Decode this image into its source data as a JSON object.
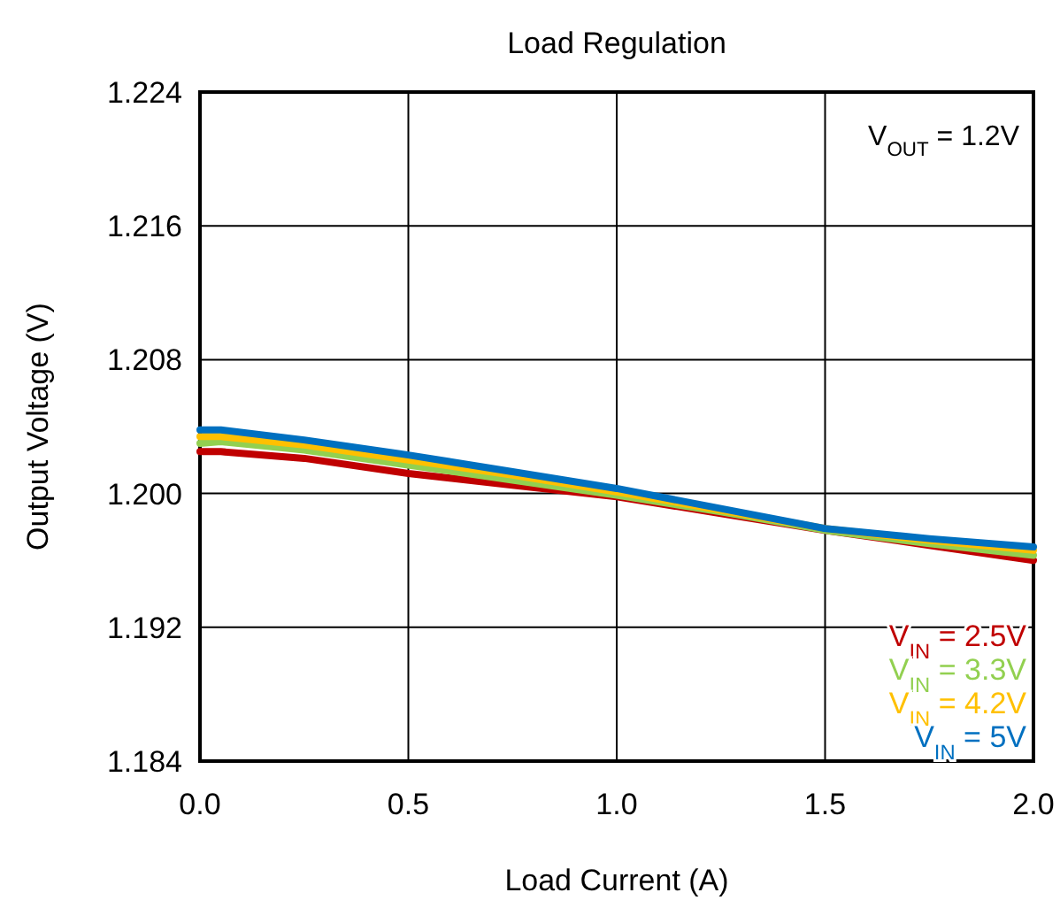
{
  "chart_data": {
    "type": "line",
    "title": "Load Regulation",
    "xlabel": "Load Current (A)",
    "ylabel": "Output Voltage (V)",
    "annotations": [
      "V$_{OUT}$ = 1.2V"
    ],
    "x": [
      0,
      0.05,
      0.25,
      0.5,
      0.75,
      1,
      1.25,
      1.5,
      1.75,
      2
    ],
    "series": [
      {
        "name": "V$_{IN}$ = 2.5V",
        "color": "#c00000",
        "values": [
          1.2025,
          1.2025,
          1.2021,
          1.2012,
          1.2005,
          1.1998,
          1.1988,
          1.1978,
          1.1969,
          1.196
        ]
      },
      {
        "name": "V$_{IN}$ = 3.3V",
        "color": "#92d050",
        "values": [
          1.203,
          1.2031,
          1.2026,
          1.2017,
          1.2008,
          1.1999,
          1.1989,
          1.1978,
          1.197,
          1.1963
        ]
      },
      {
        "name": "V$_{IN}$ = 4.2V",
        "color": "#ffc000",
        "values": [
          1.2034,
          1.2034,
          1.2029,
          1.202,
          1.2011,
          1.2001,
          1.199,
          1.1979,
          1.1972,
          1.1966
        ]
      },
      {
        "name": "V$_{IN}$ = 5V",
        "color": "#0070c0",
        "values": [
          1.2038,
          1.2038,
          1.2032,
          1.2023,
          1.2013,
          1.2003,
          1.1991,
          1.1979,
          1.1973,
          1.1968
        ]
      }
    ],
    "xlim": [
      0,
      2
    ],
    "ylim": [
      1.184,
      1.224
    ],
    "xticks": [
      {
        "value": 0,
        "label": "0.0"
      },
      {
        "value": 0.5,
        "label": "0.5"
      },
      {
        "value": 1,
        "label": "1.0"
      },
      {
        "value": 1.5,
        "label": "1.5"
      },
      {
        "value": 2,
        "label": "2.0"
      }
    ],
    "yticks": [
      1.184,
      1.192,
      {
        "value": 1.2,
        "label": "1.200"
      },
      1.208,
      1.216,
      1.224
    ],
    "grid": true,
    "legend": "bottom right",
    "marker": "none",
    "line_style": "solid"
  }
}
